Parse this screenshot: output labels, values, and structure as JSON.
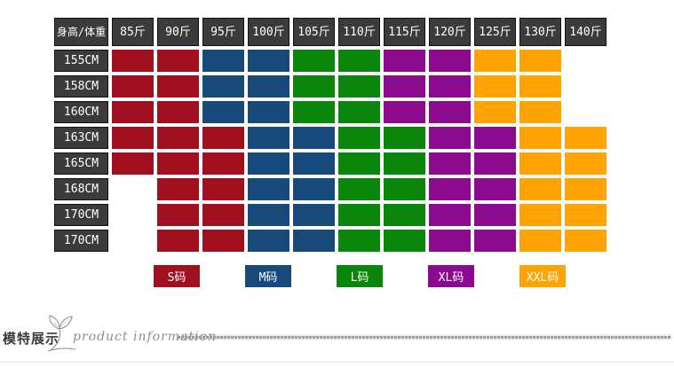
{
  "chart_data": {
    "type": "table",
    "corner_label": "身高/体重",
    "columns": [
      "85斤",
      "90斤",
      "95斤",
      "100斤",
      "105斤",
      "110斤",
      "115斤",
      "120斤",
      "125斤",
      "130斤",
      "140斤"
    ],
    "rows": [
      {
        "label": "155CM",
        "values": [
          "S",
          "S",
          "M",
          "M",
          "L",
          "L",
          "XL",
          "XL",
          "XXL",
          "XXL",
          ""
        ]
      },
      {
        "label": "158CM",
        "values": [
          "S",
          "S",
          "M",
          "M",
          "L",
          "L",
          "XL",
          "XL",
          "XXL",
          "XXL",
          ""
        ]
      },
      {
        "label": "160CM",
        "values": [
          "S",
          "S",
          "M",
          "M",
          "L",
          "L",
          "XL",
          "XL",
          "XXL",
          "XXL",
          ""
        ]
      },
      {
        "label": "163CM",
        "values": [
          "S",
          "S",
          "S",
          "M",
          "M",
          "L",
          "L",
          "XL",
          "XL",
          "XXL",
          "XXL"
        ]
      },
      {
        "label": "165CM",
        "values": [
          "S",
          "S",
          "S",
          "M",
          "M",
          "L",
          "L",
          "XL",
          "XL",
          "XXL",
          "XXL"
        ]
      },
      {
        "label": "168CM",
        "values": [
          "",
          "S",
          "S",
          "M",
          "M",
          "L",
          "L",
          "XL",
          "XL",
          "XXL",
          "XXL"
        ]
      },
      {
        "label": "170CM",
        "values": [
          "",
          "S",
          "S",
          "M",
          "M",
          "L",
          "L",
          "XL",
          "XL",
          "XXL",
          "XXL"
        ]
      },
      {
        "label": "170CM",
        "values": [
          "",
          "S",
          "S",
          "M",
          "M",
          "L",
          "L",
          "XL",
          "XL",
          "XXL",
          "XXL"
        ]
      }
    ],
    "legend": [
      {
        "label": "S码",
        "value": "S",
        "color": "#A1101F"
      },
      {
        "label": "M码",
        "value": "M",
        "color": "#17497B"
      },
      {
        "label": "L码",
        "value": "L",
        "color": "#0A860A"
      },
      {
        "label": "XL码",
        "value": "XL",
        "color": "#8B0A8D"
      },
      {
        "label": "XXL码",
        "value": "XXL",
        "color": "#FFA404"
      }
    ],
    "legend_position": "bottom",
    "header_bg": "#3B3B3B",
    "header_text_color": "#FFFFFF",
    "grid_gap_color": "#FFFFFF"
  },
  "footer": {
    "section_title": "模特展示",
    "script_text": "product information"
  }
}
